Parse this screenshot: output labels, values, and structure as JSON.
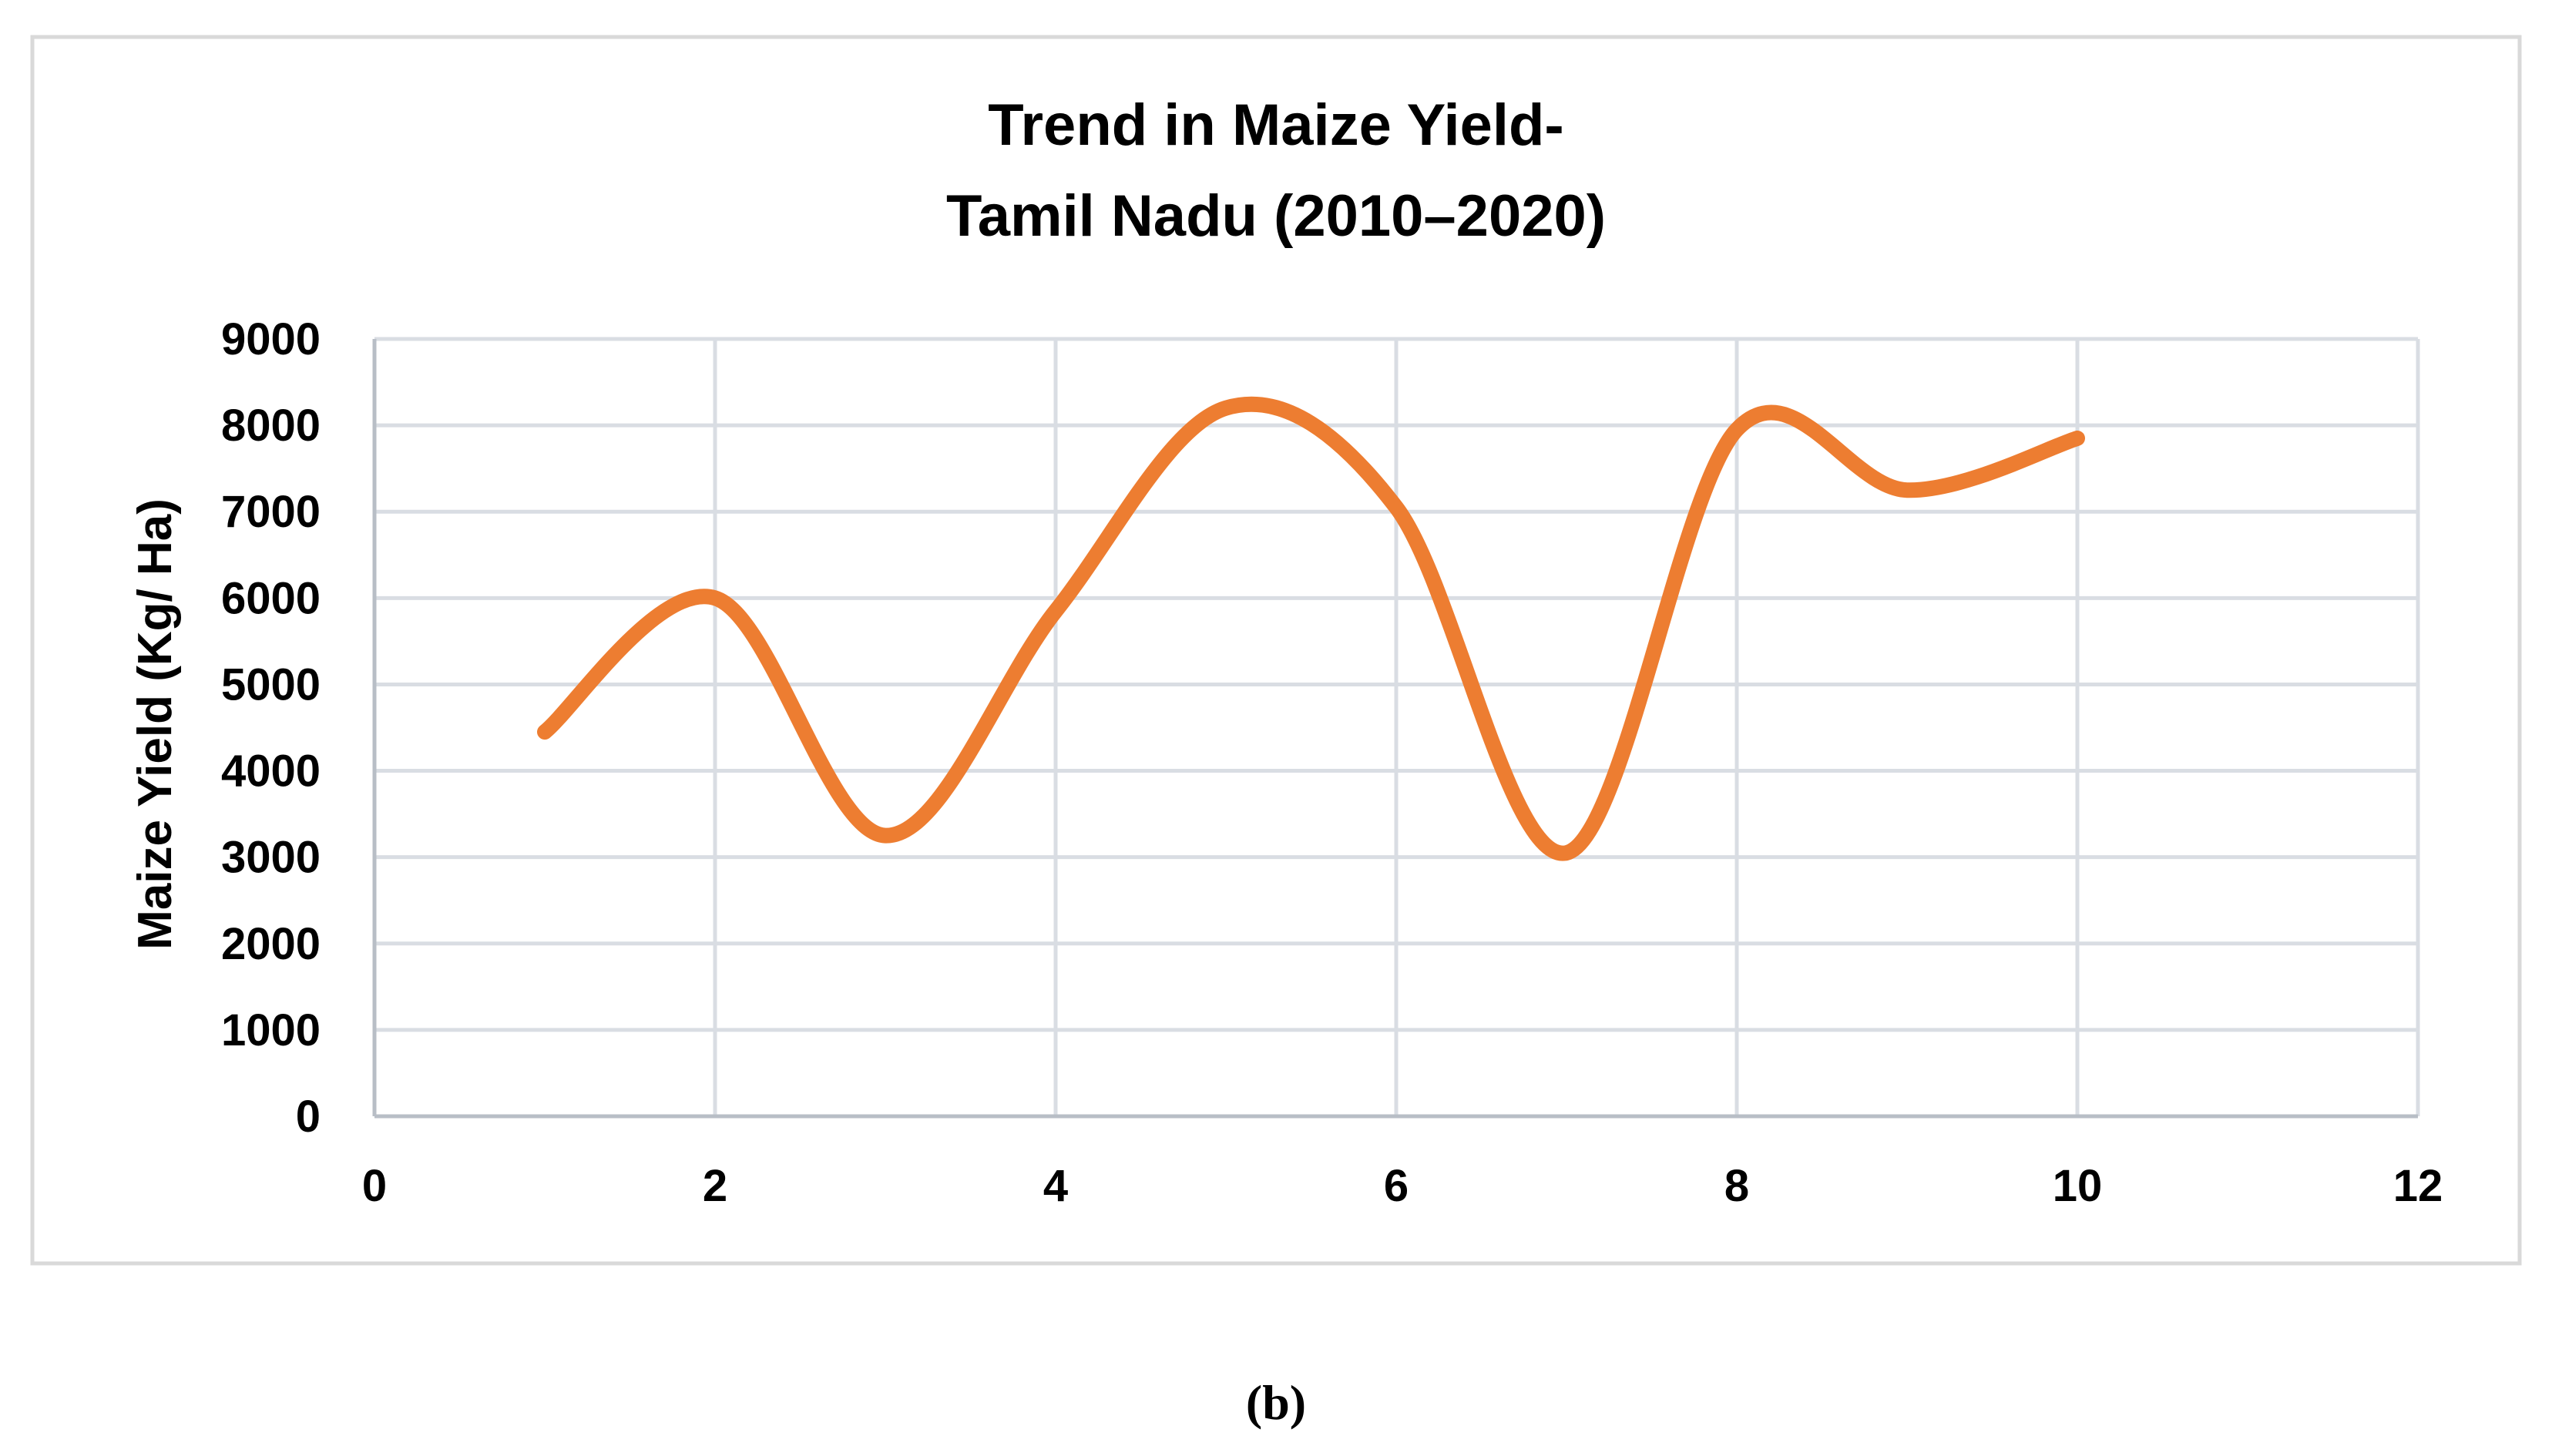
{
  "chart_data": {
    "type": "line",
    "title": [
      "Trend in Maize Yield-",
      "Tamil Nadu (2010–2020)"
    ],
    "xlabel": "",
    "ylabel": "Maize Yield (Kg/ Ha)",
    "xlim": [
      0,
      12
    ],
    "ylim": [
      0,
      9000
    ],
    "xticks": [
      0,
      2,
      4,
      6,
      8,
      10,
      12
    ],
    "yticks": [
      0,
      1000,
      2000,
      3000,
      4000,
      5000,
      6000,
      7000,
      8000,
      9000
    ],
    "grid": true,
    "smooth": true,
    "legend": "none",
    "series": [
      {
        "color": "#ed7d31",
        "x": [
          1,
          2,
          3,
          4,
          5,
          6,
          7,
          8,
          9,
          10
        ],
        "y": [
          4450,
          6000,
          3250,
          5850,
          8200,
          7050,
          3050,
          7950,
          7250,
          7850
        ]
      }
    ]
  },
  "caption": "(b)"
}
